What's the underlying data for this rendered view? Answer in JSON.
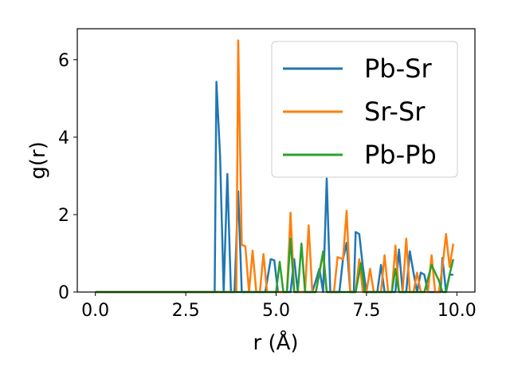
{
  "chart_data": {
    "type": "line",
    "xlabel": "r (Å)",
    "ylabel": "g(r)",
    "xlim": [
      -0.5,
      10.5
    ],
    "ylim": [
      0,
      6.8
    ],
    "xticks": [
      0.0,
      2.5,
      5.0,
      7.5,
      10.0
    ],
    "xtick_labels": [
      "0.0",
      "2.5",
      "5.0",
      "7.5",
      "10.0"
    ],
    "yticks": [
      0,
      2,
      4,
      6
    ],
    "ytick_labels": [
      "0",
      "2",
      "4",
      "6"
    ],
    "grid": false,
    "legend_position": "top-right",
    "series": [
      {
        "name": "Pb-Sr",
        "color": "#1f77b4",
        "points": [
          [
            0.0,
            0
          ],
          [
            3.2,
            0
          ],
          [
            3.3,
            0.0
          ],
          [
            3.35,
            5.43
          ],
          [
            3.45,
            3.5
          ],
          [
            3.55,
            0
          ],
          [
            3.65,
            3.05
          ],
          [
            3.75,
            0
          ],
          [
            3.85,
            0
          ],
          [
            3.95,
            2.6
          ],
          [
            4.05,
            0
          ],
          [
            4.7,
            0
          ],
          [
            4.85,
            0.85
          ],
          [
            4.95,
            0.82
          ],
          [
            5.05,
            0
          ],
          [
            5.4,
            0
          ],
          [
            5.5,
            0.85
          ],
          [
            5.6,
            0
          ],
          [
            6.0,
            0
          ],
          [
            6.2,
            0.6
          ],
          [
            6.3,
            0
          ],
          [
            6.4,
            2.93
          ],
          [
            6.5,
            0
          ],
          [
            6.75,
            0
          ],
          [
            6.85,
            0.85
          ],
          [
            6.95,
            1.27
          ],
          [
            7.05,
            0
          ],
          [
            7.15,
            0
          ],
          [
            7.2,
            1.55
          ],
          [
            7.3,
            1.5
          ],
          [
            7.4,
            0.65
          ],
          [
            7.5,
            0
          ],
          [
            7.8,
            0
          ],
          [
            7.9,
            0.7
          ],
          [
            8.0,
            0
          ],
          [
            8.3,
            0
          ],
          [
            8.4,
            1.1
          ],
          [
            8.5,
            0
          ],
          [
            8.6,
            0
          ],
          [
            8.7,
            1.05
          ],
          [
            8.8,
            0.5
          ],
          [
            8.9,
            0
          ],
          [
            9.0,
            0.5
          ],
          [
            9.1,
            0.45
          ],
          [
            9.2,
            0
          ],
          [
            9.55,
            0
          ],
          [
            9.6,
            0.88
          ],
          [
            9.7,
            0
          ],
          [
            9.8,
            0.45
          ],
          [
            9.9,
            0.45
          ]
        ]
      },
      {
        "name": "Sr-Sr",
        "color": "#ff7f0e",
        "points": [
          [
            0.0,
            0
          ],
          [
            3.8,
            0
          ],
          [
            3.9,
            0
          ],
          [
            3.95,
            6.5
          ],
          [
            4.05,
            1.22
          ],
          [
            4.15,
            1.18
          ],
          [
            4.25,
            0
          ],
          [
            4.35,
            1.07
          ],
          [
            4.45,
            0
          ],
          [
            4.55,
            0
          ],
          [
            4.65,
            0.98
          ],
          [
            4.75,
            0
          ],
          [
            5.3,
            0
          ],
          [
            5.4,
            2.05
          ],
          [
            5.5,
            0
          ],
          [
            5.8,
            0
          ],
          [
            5.9,
            1.72
          ],
          [
            6.0,
            0
          ],
          [
            6.1,
            0
          ],
          [
            6.3,
            1.0
          ],
          [
            6.4,
            0
          ],
          [
            6.6,
            0
          ],
          [
            6.7,
            0.9
          ],
          [
            6.85,
            0.85
          ],
          [
            6.95,
            2.1
          ],
          [
            7.05,
            0
          ],
          [
            7.2,
            0
          ],
          [
            7.3,
            0.85
          ],
          [
            7.4,
            0
          ],
          [
            7.5,
            0
          ],
          [
            7.6,
            0.6
          ],
          [
            7.7,
            0
          ],
          [
            7.9,
            0
          ],
          [
            8.0,
            0.95
          ],
          [
            8.1,
            0
          ],
          [
            8.2,
            0
          ],
          [
            8.3,
            1.2
          ],
          [
            8.4,
            0
          ],
          [
            8.5,
            0
          ],
          [
            8.6,
            1.38
          ],
          [
            8.7,
            0
          ],
          [
            8.8,
            0
          ],
          [
            8.9,
            0.5
          ],
          [
            9.0,
            0
          ],
          [
            9.2,
            0
          ],
          [
            9.3,
            0.95
          ],
          [
            9.4,
            0
          ],
          [
            9.5,
            0
          ],
          [
            9.6,
            0.65
          ],
          [
            9.7,
            1.5
          ],
          [
            9.8,
            0.65
          ],
          [
            9.9,
            1.25
          ]
        ]
      },
      {
        "name": "Pb-Pb",
        "color": "#2ca02c",
        "points": [
          [
            0.0,
            0
          ],
          [
            5.0,
            0
          ],
          [
            5.1,
            0.78
          ],
          [
            5.2,
            0
          ],
          [
            5.3,
            0
          ],
          [
            5.4,
            1.38
          ],
          [
            5.5,
            0
          ],
          [
            5.6,
            0
          ],
          [
            5.7,
            1.25
          ],
          [
            5.8,
            0
          ],
          [
            6.1,
            0
          ],
          [
            6.3,
            1.05
          ],
          [
            6.4,
            0
          ],
          [
            7.2,
            0
          ],
          [
            7.35,
            0.75
          ],
          [
            7.45,
            0
          ],
          [
            8.2,
            0
          ],
          [
            8.3,
            0.6
          ],
          [
            8.4,
            0
          ],
          [
            9.1,
            0
          ],
          [
            9.3,
            0.7
          ],
          [
            9.5,
            0.3
          ],
          [
            9.6,
            0
          ],
          [
            9.7,
            0
          ],
          [
            9.8,
            0.45
          ],
          [
            9.9,
            0.85
          ]
        ]
      }
    ]
  }
}
